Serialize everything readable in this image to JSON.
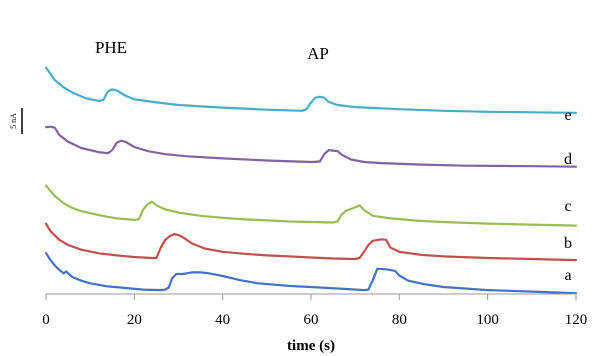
{
  "chart_data": {
    "type": "line",
    "title": "",
    "xlabel": "time (s)",
    "ylabel": "",
    "xlim": [
      0,
      120
    ],
    "x_ticks": [
      0,
      20,
      40,
      60,
      80,
      100,
      120
    ],
    "x_tick_labels": [
      "0",
      "20",
      "40",
      "60",
      "80",
      "100",
      "120"
    ],
    "y_axis_visible": false,
    "grid": false,
    "legend": "none",
    "scale_bar": {
      "label": "5 nA",
      "value_nA": 5
    },
    "annotations": [
      {
        "text": "PHE",
        "x": 14
      },
      {
        "text": "AP",
        "x": 62
      }
    ],
    "series": [
      {
        "name": "a",
        "color": "#4472c4",
        "points": [
          [
            0,
            -1.7
          ],
          [
            1,
            -0.4
          ],
          [
            2,
            0.7
          ],
          [
            3,
            1.5
          ],
          [
            4,
            2.2
          ],
          [
            4.6,
            1.8
          ],
          [
            5,
            2.2
          ],
          [
            6,
            2.9
          ],
          [
            8,
            3.6
          ],
          [
            10,
            4.1
          ],
          [
            14,
            4.7
          ],
          [
            18,
            5.0
          ],
          [
            22,
            5.3
          ],
          [
            26,
            5.4
          ],
          [
            27,
            5.3
          ],
          [
            27.8,
            4.9
          ],
          [
            28.5,
            3.2
          ],
          [
            29.5,
            2.3
          ],
          [
            31,
            2.3
          ],
          [
            33,
            2.0
          ],
          [
            35,
            2.0
          ],
          [
            37,
            2.2
          ],
          [
            40,
            2.7
          ],
          [
            44,
            3.5
          ],
          [
            48,
            4.1
          ],
          [
            55,
            4.6
          ],
          [
            62,
            4.9
          ],
          [
            68,
            5.2
          ],
          [
            72,
            5.4
          ],
          [
            73,
            5.3
          ],
          [
            74,
            3.5
          ],
          [
            75,
            1.3
          ],
          [
            77,
            1.4
          ],
          [
            79,
            1.7
          ],
          [
            80,
            2.6
          ],
          [
            82,
            3.6
          ],
          [
            86,
            4.3
          ],
          [
            90,
            4.8
          ],
          [
            100,
            5.4
          ],
          [
            110,
            5.7
          ],
          [
            120,
            6.0
          ]
        ]
      },
      {
        "name": "b",
        "color": "#c0504d",
        "points": [
          [
            0,
            -1.6
          ],
          [
            1,
            -0.2
          ],
          [
            3,
            1.5
          ],
          [
            5,
            2.5
          ],
          [
            8,
            3.4
          ],
          [
            12,
            4.1
          ],
          [
            16,
            4.5
          ],
          [
            20,
            4.8
          ],
          [
            24,
            5.0
          ],
          [
            25,
            5.0
          ],
          [
            26,
            3.0
          ],
          [
            27,
            1.5
          ],
          [
            28,
            0.8
          ],
          [
            29,
            0.4
          ],
          [
            30,
            0.6
          ],
          [
            31,
            1.0
          ],
          [
            33,
            2.2
          ],
          [
            36,
            3.2
          ],
          [
            40,
            3.8
          ],
          [
            45,
            4.2
          ],
          [
            50,
            4.5
          ],
          [
            55,
            4.7
          ],
          [
            60,
            4.9
          ],
          [
            65,
            5.1
          ],
          [
            70,
            5.2
          ],
          [
            71,
            5.0
          ],
          [
            72,
            3.8
          ],
          [
            73,
            2.5
          ],
          [
            74,
            1.7
          ],
          [
            76,
            1.4
          ],
          [
            77,
            1.5
          ],
          [
            78,
            3.0
          ],
          [
            80,
            3.8
          ],
          [
            85,
            4.4
          ],
          [
            90,
            4.7
          ],
          [
            100,
            5.0
          ],
          [
            110,
            5.2
          ],
          [
            120,
            5.4
          ]
        ]
      },
      {
        "name": "c",
        "color": "#9bbb59",
        "points": [
          [
            0,
            -2.0
          ],
          [
            1,
            -1.0
          ],
          [
            2,
            0.0
          ],
          [
            4,
            1.4
          ],
          [
            6,
            2.3
          ],
          [
            8,
            2.9
          ],
          [
            12,
            3.7
          ],
          [
            16,
            4.3
          ],
          [
            20,
            4.6
          ],
          [
            21,
            4.5
          ],
          [
            22,
            2.6
          ],
          [
            23,
            1.6
          ],
          [
            24,
            1.1
          ],
          [
            25,
            1.8
          ],
          [
            27,
            2.6
          ],
          [
            30,
            3.2
          ],
          [
            35,
            3.8
          ],
          [
            40,
            4.2
          ],
          [
            45,
            4.5
          ],
          [
            50,
            4.7
          ],
          [
            55,
            4.9
          ],
          [
            60,
            5.0
          ],
          [
            65,
            5.1
          ],
          [
            66,
            4.9
          ],
          [
            67,
            3.5
          ],
          [
            68,
            2.8
          ],
          [
            70,
            2.2
          ],
          [
            71,
            1.8
          ],
          [
            72,
            2.7
          ],
          [
            74,
            3.8
          ],
          [
            78,
            4.3
          ],
          [
            85,
            4.8
          ],
          [
            90,
            5.0
          ],
          [
            100,
            5.3
          ],
          [
            110,
            5.5
          ],
          [
            120,
            5.7
          ]
        ]
      },
      {
        "name": "d",
        "color": "#8064a2",
        "points": [
          [
            0,
            -4.0
          ],
          [
            1,
            -4.1
          ],
          [
            2,
            -3.9
          ],
          [
            3,
            -2.5
          ],
          [
            5,
            -1.2
          ],
          [
            8,
            0.0
          ],
          [
            12,
            0.8
          ],
          [
            14,
            1.0
          ],
          [
            15,
            0.4
          ],
          [
            16,
            -1.0
          ],
          [
            17,
            -1.4
          ],
          [
            18,
            -1.2
          ],
          [
            20,
            -0.2
          ],
          [
            23,
            0.6
          ],
          [
            27,
            1.2
          ],
          [
            32,
            1.6
          ],
          [
            40,
            2.0
          ],
          [
            50,
            2.4
          ],
          [
            60,
            2.7
          ],
          [
            62,
            2.6
          ],
          [
            63,
            1.2
          ],
          [
            64,
            0.4
          ],
          [
            66,
            0.6
          ],
          [
            67,
            1.3
          ],
          [
            69,
            2.2
          ],
          [
            72,
            2.7
          ],
          [
            76,
            2.9
          ],
          [
            85,
            3.2
          ],
          [
            95,
            3.4
          ],
          [
            110,
            3.5
          ],
          [
            120,
            3.6
          ]
        ]
      },
      {
        "name": "e",
        "color": "#4bacc6",
        "points": [
          [
            0,
            -7.0
          ],
          [
            1,
            -5.8
          ],
          [
            2,
            -4.6
          ],
          [
            4,
            -3.2
          ],
          [
            6,
            -2.2
          ],
          [
            9,
            -1.1
          ],
          [
            12,
            -0.6
          ],
          [
            13,
            -0.8
          ],
          [
            14,
            -2.4
          ],
          [
            15,
            -2.8
          ],
          [
            16,
            -2.6
          ],
          [
            18,
            -1.6
          ],
          [
            20,
            -0.9
          ],
          [
            25,
            -0.3
          ],
          [
            30,
            0.2
          ],
          [
            40,
            0.7
          ],
          [
            50,
            1.1
          ],
          [
            58,
            1.3
          ],
          [
            59,
            1.0
          ],
          [
            60,
            -0.3
          ],
          [
            61,
            -1.2
          ],
          [
            62,
            -1.4
          ],
          [
            63,
            -1.2
          ],
          [
            64,
            -0.4
          ],
          [
            66,
            0.2
          ],
          [
            70,
            0.6
          ],
          [
            80,
            1.0
          ],
          [
            90,
            1.3
          ],
          [
            100,
            1.5
          ],
          [
            110,
            1.6
          ],
          [
            120,
            1.7
          ]
        ]
      }
    ]
  }
}
